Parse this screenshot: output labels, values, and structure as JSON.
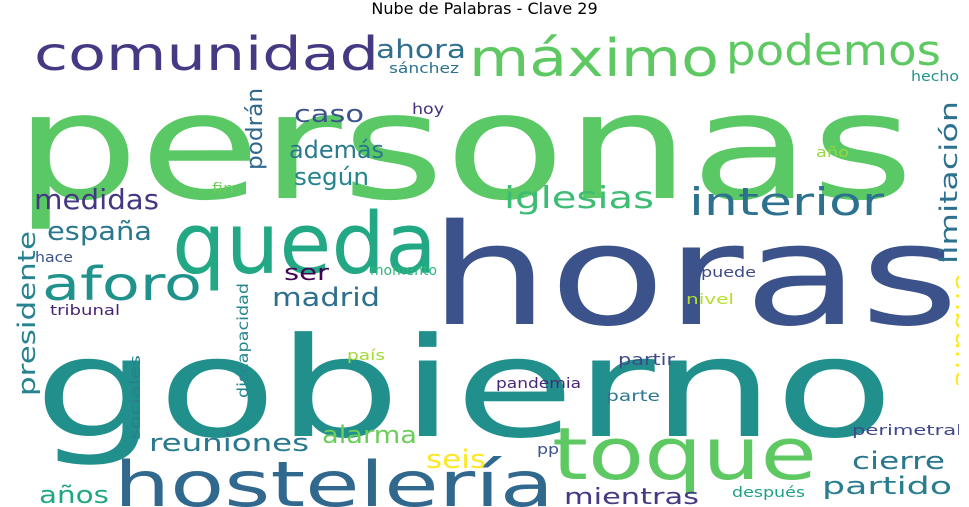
{
  "chart_data": {
    "type": "wordcloud",
    "title": "Nube de Palabras - Clave 29",
    "words": [
      {
        "text": "personas",
        "color": "#5ac864"
      },
      {
        "text": "gobierno",
        "color": "#21908c"
      },
      {
        "text": "horas",
        "color": "#3b528b"
      },
      {
        "text": "queda",
        "color": "#22a884"
      },
      {
        "text": "toque",
        "color": "#5ec962"
      },
      {
        "text": "hostelería",
        "color": "#31688e"
      },
      {
        "text": "comunidad",
        "color": "#443a83"
      },
      {
        "text": "máximo",
        "color": "#5ec962"
      },
      {
        "text": "podemos",
        "color": "#5ec962"
      },
      {
        "text": "interior",
        "color": "#2c728e"
      },
      {
        "text": "aforo",
        "color": "#20928c"
      },
      {
        "text": "iglesias",
        "color": "#3dbc74"
      },
      {
        "text": "medidas",
        "color": "#453781"
      },
      {
        "text": "españa",
        "color": "#2a778e"
      },
      {
        "text": "madrid",
        "color": "#2d708e"
      },
      {
        "text": "ahora",
        "color": "#2e6f8e"
      },
      {
        "text": "caso",
        "color": "#3b528b"
      },
      {
        "text": "además",
        "color": "#29798e"
      },
      {
        "text": "según",
        "color": "#25848e"
      },
      {
        "text": "podrán",
        "color": "#31688e"
      },
      {
        "text": "ser",
        "color": "#440154"
      },
      {
        "text": "limitación",
        "color": "#2c728e"
      },
      {
        "text": "aunque",
        "color": "#fde725"
      },
      {
        "text": "presidente",
        "color": "#26828e"
      },
      {
        "text": "reuniones",
        "color": "#2a788e"
      },
      {
        "text": "alarma",
        "color": "#6ccd5a"
      },
      {
        "text": "seis",
        "color": "#fde725"
      },
      {
        "text": "cierre",
        "color": "#2a768e"
      },
      {
        "text": "partido",
        "color": "#287d8e"
      },
      {
        "text": "años",
        "color": "#22a785"
      },
      {
        "text": "mientras",
        "color": "#443983"
      },
      {
        "text": "sánchez",
        "color": "#2d718e"
      },
      {
        "text": "hoy",
        "color": "#46307e"
      },
      {
        "text": "hecho",
        "color": "#21918c"
      },
      {
        "text": "año",
        "color": "#95d840"
      },
      {
        "text": "fin",
        "color": "#6ece58"
      },
      {
        "text": "hace",
        "color": "#3b528b"
      },
      {
        "text": "momento",
        "color": "#2fb47c"
      },
      {
        "text": "puede",
        "color": "#3e4989"
      },
      {
        "text": "nivel",
        "color": "#b5de2b"
      },
      {
        "text": "tribunal",
        "color": "#482475"
      },
      {
        "text": "discapacidad",
        "color": "#25858e"
      },
      {
        "text": "país",
        "color": "#a5db36"
      },
      {
        "text": "partir",
        "color": "#3e4a89"
      },
      {
        "text": "sociales",
        "color": "#27808e"
      },
      {
        "text": "pandemia",
        "color": "#482878"
      },
      {
        "text": "parte",
        "color": "#2a788e"
      },
      {
        "text": "perimetral",
        "color": "#3f4788"
      },
      {
        "text": "pp",
        "color": "#3b528b"
      },
      {
        "text": "después",
        "color": "#1fa088"
      }
    ]
  }
}
